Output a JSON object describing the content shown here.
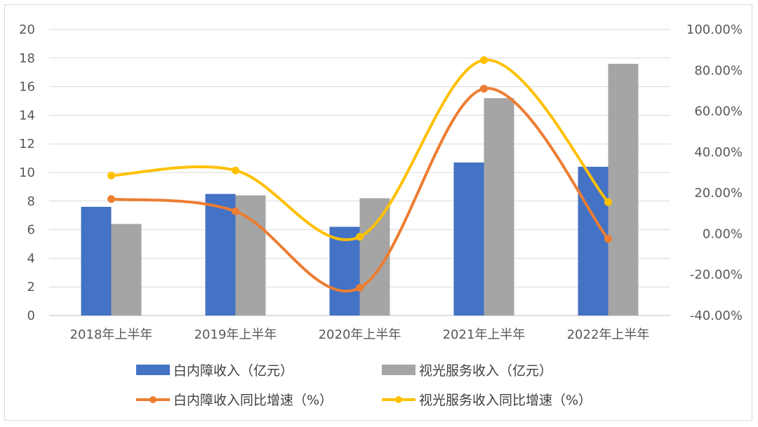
{
  "chart_data": {
    "type": "bar+line",
    "categories": [
      "2018年上半年",
      "2019年上半年",
      "2020年上半年",
      "2021年上半年",
      "2022年上半年"
    ],
    "series": [
      {
        "name": "白内障收入（亿元）",
        "kind": "bar",
        "axis": "left",
        "color": "#4472C4",
        "values": [
          7.6,
          8.5,
          6.2,
          10.7,
          10.4
        ]
      },
      {
        "name": "视光服务收入（亿元）",
        "kind": "bar",
        "axis": "left",
        "color": "#A5A5A5",
        "values": [
          6.4,
          8.4,
          8.2,
          15.2,
          17.6
        ]
      },
      {
        "name": "白内障收入同比增速（%）",
        "kind": "line",
        "axis": "right",
        "color": "#ED7D31",
        "values": [
          17.0,
          11.0,
          -26.5,
          71.0,
          -2.5
        ]
      },
      {
        "name": "视光服务收入同比增速（%）",
        "kind": "line",
        "axis": "right",
        "color": "#FFC000",
        "values": [
          28.5,
          31.0,
          -1.5,
          85.0,
          15.5
        ]
      }
    ],
    "y_left": {
      "min": 0,
      "max": 20,
      "step": 2,
      "ticks": [
        "0",
        "2",
        "4",
        "6",
        "8",
        "10",
        "12",
        "14",
        "16",
        "18",
        "20"
      ]
    },
    "y_right": {
      "min": -40,
      "max": 100,
      "step": 20,
      "ticks": [
        "-40.00%",
        "-20.00%",
        "0.00%",
        "20.00%",
        "40.00%",
        "60.00%",
        "80.00%",
        "100.00%"
      ]
    },
    "grid": true,
    "legend_position": "bottom"
  }
}
